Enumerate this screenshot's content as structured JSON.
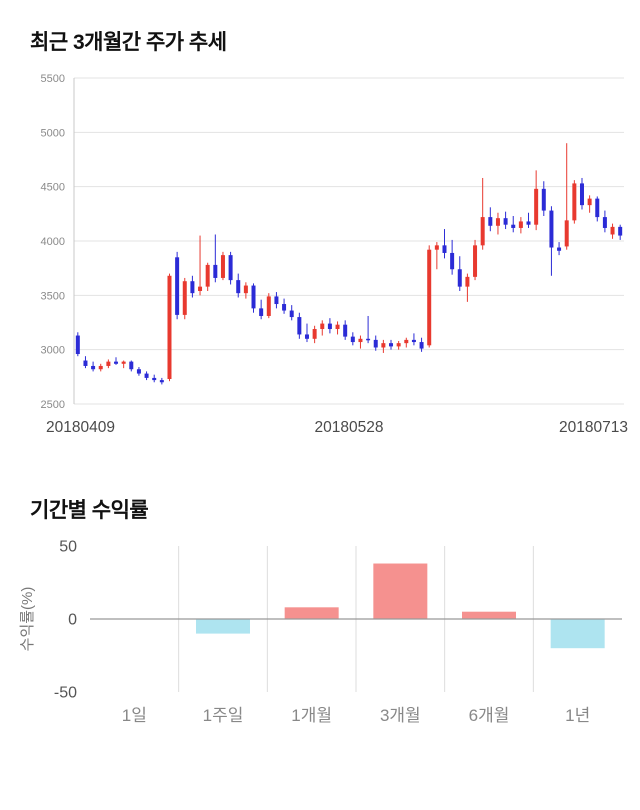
{
  "chart_data": [
    {
      "type": "candlestick",
      "title": "최근 3개월간 주가 추세",
      "x_tick_labels": [
        "20180409",
        "20180528",
        "20180713"
      ],
      "y_ticks": [
        2500,
        3000,
        3500,
        4000,
        4500,
        5000,
        5500
      ],
      "ylim": [
        2500,
        5500
      ],
      "grid": true,
      "up_color": "#e8392f",
      "down_color": "#2b2bd6",
      "candles": [
        [
          3130,
          3160,
          2940,
          2960
        ],
        [
          2900,
          2940,
          2830,
          2850
        ],
        [
          2850,
          2890,
          2800,
          2820
        ],
        [
          2820,
          2870,
          2800,
          2850
        ],
        [
          2850,
          2910,
          2830,
          2890
        ],
        [
          2890,
          2930,
          2860,
          2870
        ],
        [
          2870,
          2900,
          2830,
          2890
        ],
        [
          2890,
          2900,
          2800,
          2820
        ],
        [
          2820,
          2840,
          2760,
          2780
        ],
        [
          2780,
          2800,
          2720,
          2740
        ],
        [
          2740,
          2770,
          2700,
          2720
        ],
        [
          2720,
          2740,
          2680,
          2700
        ],
        [
          2730,
          3700,
          2710,
          3680
        ],
        [
          3850,
          3900,
          3280,
          3320
        ],
        [
          3320,
          3660,
          3280,
          3630
        ],
        [
          3630,
          3680,
          3480,
          3520
        ],
        [
          3540,
          4050,
          3500,
          3580
        ],
        [
          3580,
          3800,
          3540,
          3780
        ],
        [
          3780,
          4060,
          3620,
          3660
        ],
        [
          3660,
          3900,
          3640,
          3870
        ],
        [
          3870,
          3900,
          3600,
          3640
        ],
        [
          3640,
          3700,
          3480,
          3520
        ],
        [
          3520,
          3620,
          3470,
          3590
        ],
        [
          3590,
          3610,
          3340,
          3380
        ],
        [
          3380,
          3460,
          3280,
          3310
        ],
        [
          3310,
          3520,
          3290,
          3490
        ],
        [
          3490,
          3530,
          3380,
          3420
        ],
        [
          3420,
          3470,
          3330,
          3360
        ],
        [
          3360,
          3410,
          3270,
          3300
        ],
        [
          3300,
          3340,
          3100,
          3140
        ],
        [
          3140,
          3240,
          3070,
          3100
        ],
        [
          3100,
          3220,
          3060,
          3190
        ],
        [
          3190,
          3270,
          3130,
          3240
        ],
        [
          3240,
          3290,
          3150,
          3190
        ],
        [
          3190,
          3260,
          3140,
          3230
        ],
        [
          3230,
          3270,
          3090,
          3120
        ],
        [
          3120,
          3160,
          3040,
          3070
        ],
        [
          3070,
          3130,
          3010,
          3100
        ],
        [
          3100,
          3310,
          3060,
          3090
        ],
        [
          3090,
          3130,
          2990,
          3020
        ],
        [
          3020,
          3090,
          2970,
          3060
        ],
        [
          3060,
          3090,
          3000,
          3030
        ],
        [
          3030,
          3080,
          3000,
          3060
        ],
        [
          3060,
          3110,
          3020,
          3090
        ],
        [
          3090,
          3150,
          3040,
          3070
        ],
        [
          3070,
          3110,
          2980,
          3010
        ],
        [
          3040,
          3960,
          3020,
          3920
        ],
        [
          3920,
          3990,
          3740,
          3960
        ],
        [
          3960,
          4110,
          3840,
          3890
        ],
        [
          3890,
          4010,
          3690,
          3740
        ],
        [
          3740,
          3860,
          3540,
          3580
        ],
        [
          3580,
          3700,
          3440,
          3670
        ],
        [
          3670,
          4010,
          3640,
          3960
        ],
        [
          3960,
          4580,
          3920,
          4220
        ],
        [
          4220,
          4310,
          4090,
          4140
        ],
        [
          4140,
          4260,
          4060,
          4210
        ],
        [
          4210,
          4270,
          4110,
          4150
        ],
        [
          4150,
          4230,
          4080,
          4120
        ],
        [
          4120,
          4220,
          4070,
          4180
        ],
        [
          4180,
          4260,
          4120,
          4150
        ],
        [
          4150,
          4650,
          4100,
          4480
        ],
        [
          4480,
          4550,
          4230,
          4280
        ],
        [
          4280,
          4320,
          3680,
          3940
        ],
        [
          3940,
          3990,
          3870,
          3910
        ],
        [
          3950,
          4900,
          3920,
          4190
        ],
        [
          4190,
          4560,
          4160,
          4530
        ],
        [
          4530,
          4580,
          4290,
          4330
        ],
        [
          4330,
          4420,
          4260,
          4390
        ],
        [
          4390,
          4410,
          4180,
          4220
        ],
        [
          4220,
          4280,
          4080,
          4120
        ],
        [
          4060,
          4160,
          4020,
          4130
        ],
        [
          4130,
          4150,
          4010,
          4050
        ]
      ]
    },
    {
      "type": "bar",
      "title": "기간별 수익률",
      "categories": [
        "1일",
        "1주일",
        "1개월",
        "3개월",
        "6개월",
        "1년"
      ],
      "values": [
        0,
        -10,
        8,
        38,
        5,
        -20
      ],
      "ylabel": "수익률(%)",
      "y_ticks": [
        -50,
        0,
        50
      ],
      "ylim": [
        -50,
        50
      ],
      "grid": true,
      "legend": "none",
      "pos_color": "#f5918f",
      "neg_color": "#aee4f0"
    }
  ]
}
